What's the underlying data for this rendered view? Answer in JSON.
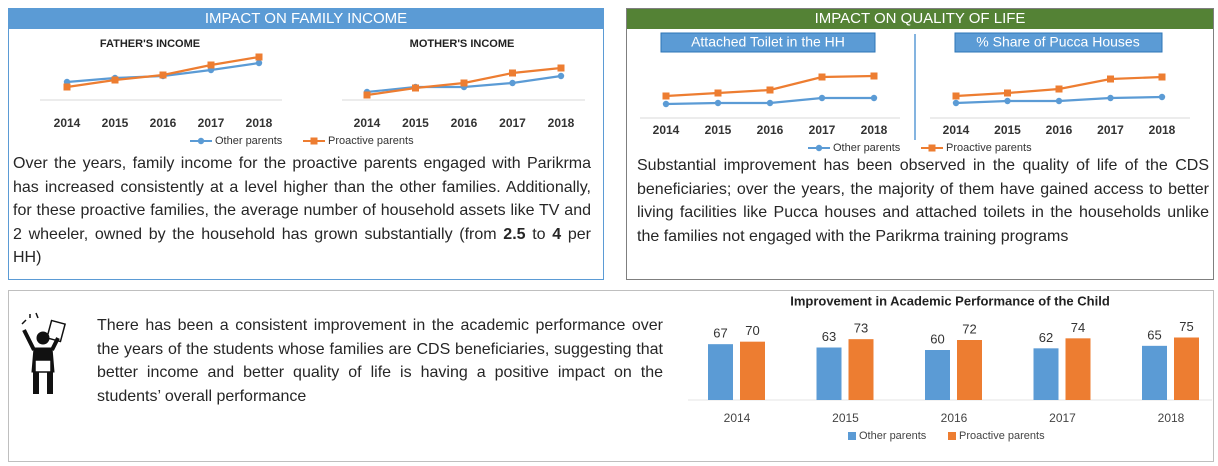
{
  "panels": [
    {
      "title": "IMPACT ON FAMILY INCOME",
      "text": [
        "Over the years, family income for the proactive parents engaged with Parikrma has increased consistently at a level higher than the other families. Additionally, for these proactive families, the average number of household assets like TV and 2 wheeler, owned by the  household has grown substantially (from ",
        "2.5",
        " to ",
        "4",
        " per HH)"
      ]
    },
    {
      "title": "IMPACT ON QUALITY OF LIFE",
      "text": [
        "Substantial improvement has been observed in the quality of life of the CDS beneficiaries; over the years, the majority of them have gained access to better living facilities like Pucca houses and attached toilets in the households unlike the families not engaged with the Parikrma training programs"
      ]
    },
    {
      "text": [
        "There has been a consistent improvement in the academic performance over the years of the students whose families are CDS beneficiaries, suggesting that better income and better quality of life is having a positive impact on the students’ overall performance"
      ]
    }
  ],
  "chart_data": [
    {
      "type": "line",
      "categories": [
        "2014",
        "2015",
        "2016",
        "2017",
        "2018"
      ],
      "ylim": [
        0,
        60
      ],
      "series": [
        {
          "name": "Other parents",
          "color": "#5b9bd5",
          "marker": "circle"
        },
        {
          "name": "Proactive parents",
          "color": "#ed7d31",
          "marker": "square"
        }
      ],
      "plots": [
        {
          "title": "FATHER'S INCOME",
          "values": [
            [
              18,
              22,
              24,
              30,
              37
            ],
            [
              13,
              20,
              25,
              35,
              43
            ]
          ]
        },
        {
          "title": "MOTHER'S INCOME",
          "values": [
            [
              8,
              13,
              13,
              17,
              24
            ],
            [
              5,
              12,
              17,
              27,
              32
            ]
          ]
        }
      ]
    },
    {
      "type": "line",
      "categories": [
        "2014",
        "2015",
        "2016",
        "2017",
        "2018"
      ],
      "ylim": [
        0,
        60
      ],
      "series": [
        {
          "name": "Other parents",
          "color": "#5b9bd5",
          "marker": "circle"
        },
        {
          "name": "Proactive parents",
          "color": "#ed7d31",
          "marker": "square"
        }
      ],
      "plots": [
        {
          "title": "Attached Toilet in the HH",
          "values": [
            [
              14,
              15,
              15,
              20,
              20
            ],
            [
              22,
              25,
              28,
              41,
              42
            ]
          ]
        },
        {
          "title": "% Share of Pucca Houses",
          "values": [
            [
              15,
              17,
              17,
              20,
              21
            ],
            [
              22,
              25,
              29,
              39,
              41
            ]
          ]
        }
      ]
    },
    {
      "type": "bar",
      "title": "Improvement in Academic Performance of the Child",
      "categories": [
        "2014",
        "2015",
        "2016",
        "2017",
        "2018"
      ],
      "ylim": [
        0,
        90
      ],
      "series": [
        {
          "name": "Other parents",
          "color": "#5b9bd5",
          "values": [
            67,
            63,
            60,
            62,
            65
          ]
        },
        {
          "name": "Proactive parents",
          "color": "#ed7d31",
          "values": [
            70,
            73,
            72,
            74,
            75
          ]
        }
      ]
    }
  ]
}
